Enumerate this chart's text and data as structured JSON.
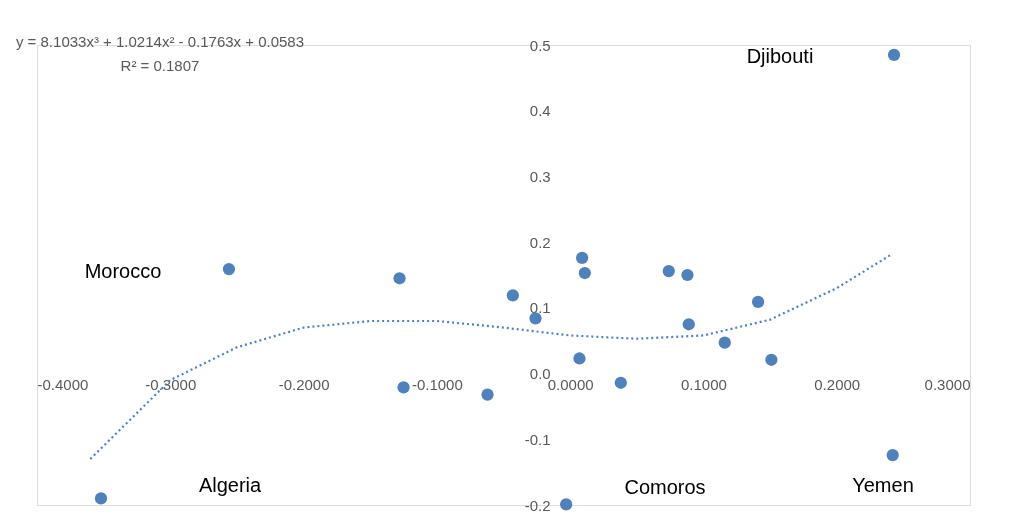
{
  "chart_data": {
    "type": "scatter",
    "xlim": [
      -0.4,
      0.3
    ],
    "ylim": [
      -0.2,
      0.5
    ],
    "xticks": [
      {
        "value": -0.4,
        "label": "-0.4000"
      },
      {
        "value": -0.3,
        "label": "-0.3000"
      },
      {
        "value": -0.2,
        "label": "-0.2000"
      },
      {
        "value": -0.1,
        "label": "-0.1000"
      },
      {
        "value": 0,
        "label": "0.0000"
      },
      {
        "value": 0.1,
        "label": "0.1000"
      },
      {
        "value": 0.2,
        "label": "0.2000"
      },
      {
        "value": 0.3,
        "label": "0.3000"
      }
    ],
    "yticks": [
      {
        "value": -0.2,
        "label": "-0.2"
      },
      {
        "value": -0.1,
        "label": "-0.1"
      },
      {
        "value": 0,
        "label": "0.0"
      },
      {
        "value": 0.1,
        "label": "0.1"
      },
      {
        "value": 0.2,
        "label": "0.2"
      },
      {
        "value": 0.3,
        "label": "0.3"
      },
      {
        "value": 0.4,
        "label": "0.4"
      },
      {
        "value": 0.5,
        "label": "0.5"
      }
    ],
    "grid": false,
    "series": [
      {
        "marker": "circle",
        "color": "#4f81bd",
        "x": [
          -0.352,
          -0.256,
          -0.128,
          -0.125,
          -0.062,
          -0.043,
          -0.026,
          -0.003,
          0.007,
          0.009,
          0.011,
          0.038,
          0.074,
          0.088,
          0.089,
          0.116,
          0.141,
          0.151,
          0.242,
          0.243
        ],
        "values": [
          -0.19,
          0.159,
          0.145,
          -0.021,
          -0.032,
          0.119,
          0.084,
          -0.199,
          0.023,
          0.176,
          0.153,
          -0.014,
          0.156,
          0.15,
          0.075,
          0.047,
          0.109,
          0.021,
          -0.124,
          0.485
        ]
      },
      {
        "type": "line",
        "color": "#4f81bd",
        "line_style": "dotted",
        "x": [
          -0.36,
          -0.3,
          -0.25,
          -0.2,
          -0.15,
          -0.1,
          -0.05,
          0,
          0.05,
          0.1,
          0.15,
          0.2,
          0.24
        ],
        "values": [
          -0.13,
          -0.01,
          0.04,
          0.07,
          0.08,
          0.08,
          0.07,
          0.058,
          0.053,
          0.058,
          0.082,
          0.13,
          0.18
        ]
      }
    ],
    "annotations": [
      "y = 8.1033x³ + 1.0214x² - 0.1763x + 0.0583",
      "R² = 0.1807",
      "Djibouti",
      "Morocco",
      "Algeria",
      "Comoros",
      "Yemen"
    ]
  }
}
